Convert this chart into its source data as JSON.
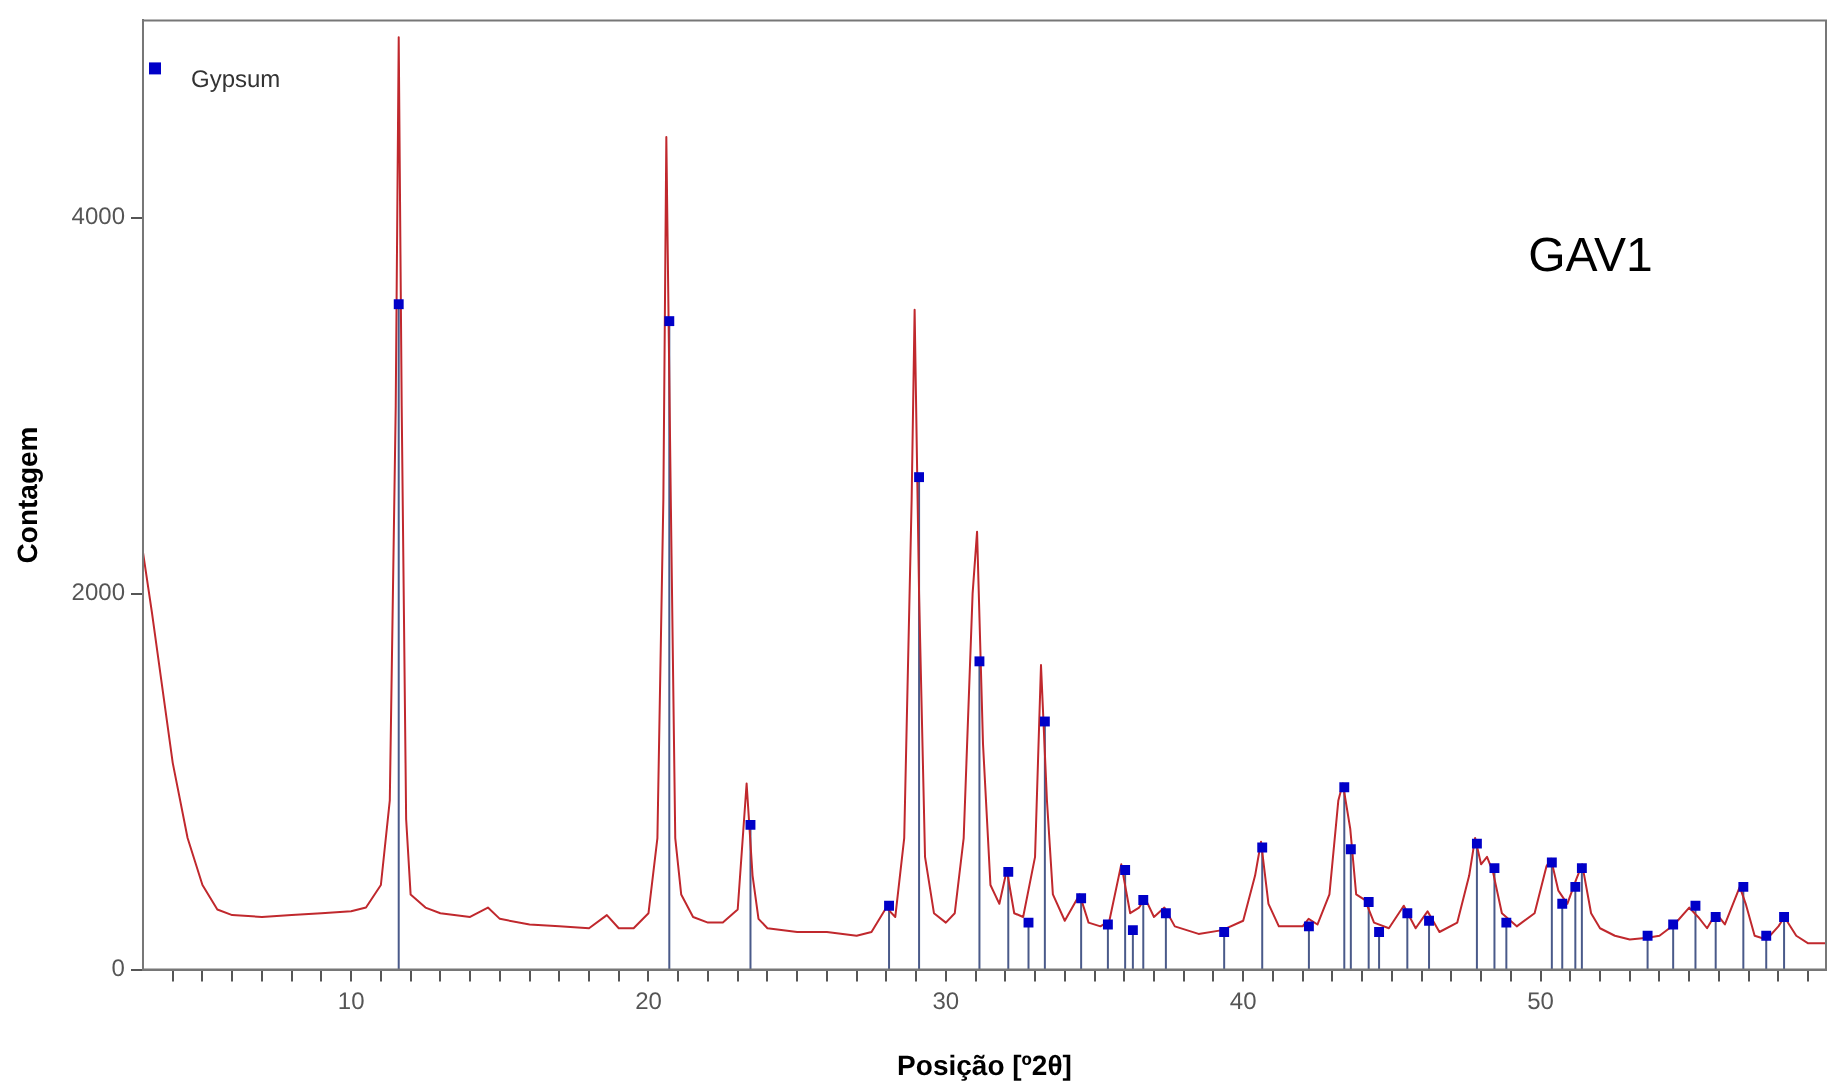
{
  "chart_data": {
    "type": "line",
    "xlabel": "Posição [º2θ]",
    "ylabel": "Contagem",
    "annotations": [
      "GAV1"
    ],
    "xlim": [
      3,
      59.6
    ],
    "ylim": [
      0,
      5050
    ],
    "xticks": [
      {
        "value": 4,
        "label": null
      },
      {
        "value": 5,
        "label": null
      },
      {
        "value": 6,
        "label": null
      },
      {
        "value": 7,
        "label": null
      },
      {
        "value": 8,
        "label": null
      },
      {
        "value": 9,
        "label": null
      },
      10,
      {
        "value": 11,
        "label": null
      },
      {
        "value": 12,
        "label": null
      },
      {
        "value": 13,
        "label": null
      },
      {
        "value": 14,
        "label": null
      },
      {
        "value": 15,
        "label": null
      },
      {
        "value": 16,
        "label": null
      },
      {
        "value": 17,
        "label": null
      },
      {
        "value": 18,
        "label": null
      },
      {
        "value": 19,
        "label": null
      },
      20,
      {
        "value": 21,
        "label": null
      },
      {
        "value": 22,
        "label": null
      },
      {
        "value": 23,
        "label": null
      },
      {
        "value": 24,
        "label": null
      },
      {
        "value": 25,
        "label": null
      },
      {
        "value": 26,
        "label": null
      },
      {
        "value": 27,
        "label": null
      },
      {
        "value": 28,
        "label": null
      },
      {
        "value": 29,
        "label": null
      },
      30,
      {
        "value": 31,
        "label": null
      },
      {
        "value": 32,
        "label": null
      },
      {
        "value": 33,
        "label": null
      },
      {
        "value": 34,
        "label": null
      },
      {
        "value": 35,
        "label": null
      },
      {
        "value": 36,
        "label": null
      },
      {
        "value": 37,
        "label": null
      },
      {
        "value": 38,
        "label": null
      },
      {
        "value": 39,
        "label": null
      },
      40,
      {
        "value": 41,
        "label": null
      },
      {
        "value": 42,
        "label": null
      },
      {
        "value": 43,
        "label": null
      },
      {
        "value": 44,
        "label": null
      },
      {
        "value": 45,
        "label": null
      },
      {
        "value": 46,
        "label": null
      },
      {
        "value": 47,
        "label": null
      },
      {
        "value": 48,
        "label": null
      },
      {
        "value": 49,
        "label": null
      },
      50,
      {
        "value": 51,
        "label": null
      },
      {
        "value": 52,
        "label": null
      },
      {
        "value": 53,
        "label": null
      },
      {
        "value": 54,
        "label": null
      },
      {
        "value": 55,
        "label": null
      },
      {
        "value": 56,
        "label": null
      },
      {
        "value": 57,
        "label": null
      },
      {
        "value": 58,
        "label": null
      },
      {
        "value": 59,
        "label": null
      }
    ],
    "yticks": [
      0,
      2000,
      4000
    ],
    "grid": false,
    "legend": "top left",
    "series": [
      {
        "type": "line",
        "color": "#c0282d",
        "x": [
          3,
          3.3,
          4,
          4.5,
          5,
          5.5,
          6,
          7,
          8,
          9,
          10,
          10.5,
          11,
          11.3,
          11.5,
          11.6,
          11.7,
          11.85,
          12,
          12.5,
          13,
          14,
          14.6,
          15,
          16,
          17,
          18,
          18.6,
          19,
          19.5,
          20,
          20.3,
          20.5,
          20.6,
          20.75,
          20.9,
          21.1,
          21.5,
          22,
          22.5,
          23,
          23.3,
          23.5,
          23.7,
          24,
          25,
          26,
          27,
          27.5,
          28,
          28.3,
          28.6,
          28.85,
          28.95,
          29.1,
          29.3,
          29.6,
          30,
          30.3,
          30.6,
          30.9,
          31.05,
          31.25,
          31.5,
          31.8,
          32.05,
          32.3,
          32.6,
          33,
          33.2,
          33.4,
          33.6,
          34,
          34.5,
          34.8,
          35.2,
          35.5,
          35.9,
          36.2,
          36.5,
          36.7,
          37,
          37.35,
          37.7,
          38.5,
          39.3,
          40,
          40.4,
          40.6,
          40.85,
          41.2,
          42,
          42.2,
          42.5,
          42.9,
          43.2,
          43.35,
          43.6,
          43.8,
          44.1,
          44.4,
          44.9,
          45.4,
          45.8,
          46.2,
          46.6,
          47.2,
          47.6,
          47.8,
          48,
          48.2,
          48.4,
          48.7,
          49.2,
          49.8,
          50.2,
          50.35,
          50.6,
          50.9,
          51.2,
          51.4,
          51.7,
          52,
          52.5,
          53,
          53.6,
          54,
          54.5,
          55,
          55.3,
          55.6,
          55.9,
          56.2,
          56.7,
          56.9,
          57.2,
          57.6,
          58,
          58.2,
          58.6,
          59,
          59.6
        ],
        "values": [
          2220,
          1900,
          1100,
          700,
          450,
          320,
          290,
          280,
          290,
          300,
          310,
          330,
          450,
          900,
          3000,
          4960,
          3000,
          800,
          400,
          330,
          300,
          280,
          330,
          270,
          240,
          230,
          220,
          290,
          220,
          220,
          300,
          700,
          2500,
          4430,
          2500,
          700,
          400,
          280,
          250,
          250,
          320,
          990,
          500,
          270,
          220,
          200,
          200,
          180,
          200,
          330,
          280,
          700,
          2500,
          3510,
          2000,
          600,
          300,
          250,
          300,
          700,
          2000,
          2330,
          1200,
          450,
          350,
          530,
          300,
          280,
          600,
          1620,
          900,
          400,
          260,
          400,
          250,
          230,
          260,
          560,
          300,
          330,
          380,
          280,
          330,
          230,
          190,
          210,
          260,
          500,
          680,
          350,
          230,
          230,
          270,
          240,
          400,
          900,
          990,
          750,
          400,
          370,
          250,
          220,
          340,
          220,
          310,
          200,
          250,
          500,
          700,
          560,
          600,
          520,
          300,
          230,
          300,
          550,
          590,
          420,
          350,
          480,
          560,
          300,
          220,
          180,
          160,
          170,
          180,
          240,
          330,
          280,
          220,
          300,
          240,
          440,
          350,
          180,
          160,
          230,
          280,
          180,
          140,
          140
        ]
      },
      {
        "type": "lollipop",
        "name": "Gypsum",
        "color": "#0000c8",
        "marker": "square",
        "x": [
          11.6,
          20.7,
          23.43,
          28.09,
          29.1,
          31.13,
          32.1,
          32.78,
          33.33,
          34.55,
          35.45,
          36.03,
          36.29,
          36.64,
          37.4,
          39.36,
          40.64,
          42.21,
          43.4,
          43.62,
          44.22,
          44.57,
          45.52,
          46.25,
          47.86,
          48.45,
          48.85,
          50.38,
          50.73,
          51.17,
          51.39,
          53.6,
          54.46,
          55.21,
          55.89,
          56.82,
          57.59,
          58.19
        ],
        "values": [
          3540,
          3450,
          770,
          340,
          2620,
          1640,
          520,
          250,
          1320,
          380,
          240,
          530,
          210,
          370,
          300,
          200,
          650,
          230,
          970,
          640,
          360,
          200,
          300,
          260,
          670,
          540,
          250,
          570,
          350,
          440,
          540,
          180,
          240,
          340,
          280,
          440,
          180,
          280
        ]
      }
    ]
  }
}
